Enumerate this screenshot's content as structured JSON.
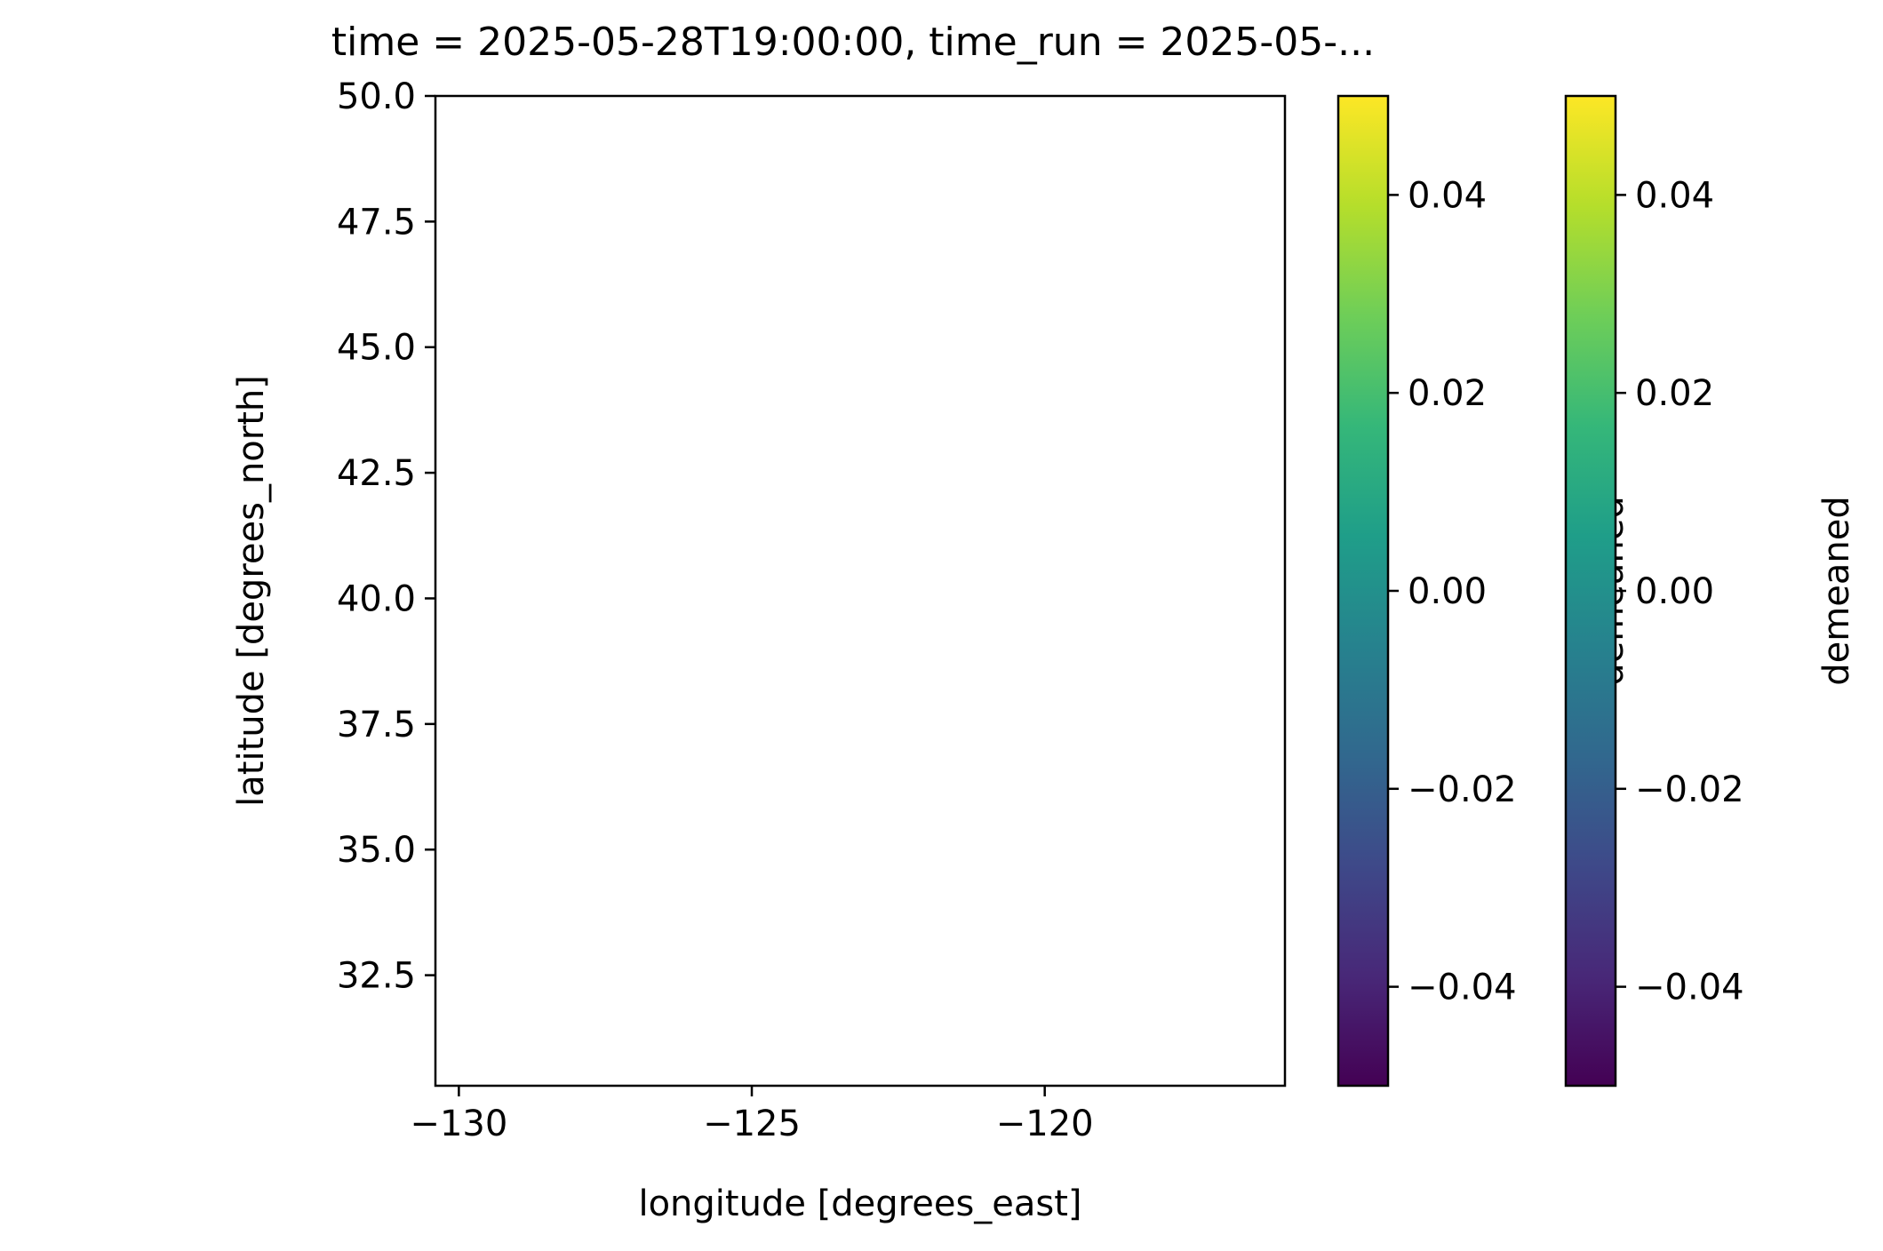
{
  "title": "time = 2025-05-28T19:00:00, time_run = 2025-05-...",
  "chart_data": [
    {
      "type": "heatmap",
      "title": "time = 2025-05-28T19:00:00, time_run = 2025-05-...",
      "xlabel": "longitude [degrees_east]",
      "ylabel": "latitude [degrees_north]",
      "xlim": [
        -130.4,
        -115.9
      ],
      "ylim": [
        30.3,
        50.0
      ],
      "xticks": [
        {
          "value": -130,
          "label": "−130"
        },
        {
          "value": -125,
          "label": "−125"
        },
        {
          "value": -120,
          "label": "−120"
        }
      ],
      "yticks": [
        {
          "value": 50.0,
          "label": "50.0"
        },
        {
          "value": 47.5,
          "label": "47.5"
        },
        {
          "value": 45.0,
          "label": "45.0"
        },
        {
          "value": 42.5,
          "label": "42.5"
        },
        {
          "value": 40.0,
          "label": "40.0"
        },
        {
          "value": 37.5,
          "label": "37.5"
        },
        {
          "value": 35.0,
          "label": "35.0"
        },
        {
          "value": 32.5,
          "label": "32.5"
        }
      ],
      "values": [],
      "grid": false
    }
  ],
  "colorbars": [
    {
      "label": "demeaned",
      "colormap": "viridis",
      "range": [
        -0.05,
        0.05
      ],
      "ticks": [
        {
          "value": 0.04,
          "label": "0.04"
        },
        {
          "value": 0.02,
          "label": "0.02"
        },
        {
          "value": 0.0,
          "label": "0.00"
        },
        {
          "value": -0.02,
          "label": "−0.02"
        },
        {
          "value": -0.04,
          "label": "−0.04"
        }
      ]
    },
    {
      "label": "demeaned",
      "colormap": "viridis",
      "range": [
        -0.05,
        0.05
      ],
      "ticks": [
        {
          "value": 0.04,
          "label": "0.04"
        },
        {
          "value": 0.02,
          "label": "0.02"
        },
        {
          "value": 0.0,
          "label": "0.00"
        },
        {
          "value": -0.02,
          "label": "−0.02"
        },
        {
          "value": -0.04,
          "label": "−0.04"
        }
      ]
    }
  ],
  "colors": {
    "viridis": [
      "#440154",
      "#482878",
      "#3e4989",
      "#31688e",
      "#26828e",
      "#1f9e89",
      "#35b779",
      "#6ece58",
      "#b5de2b",
      "#fde725"
    ]
  }
}
